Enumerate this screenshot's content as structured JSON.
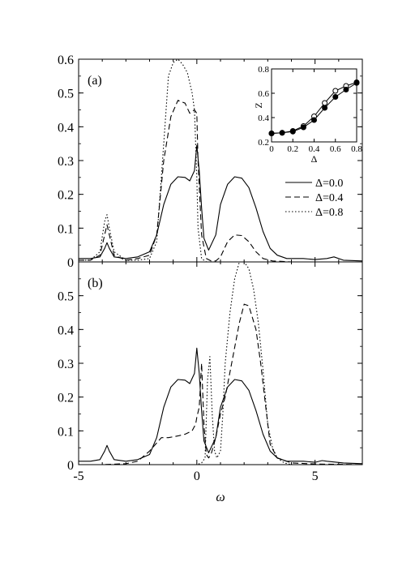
{
  "figure": {
    "xlabel": "ω",
    "xlim": [
      -5,
      7
    ],
    "xticks": [
      -5,
      0,
      5
    ],
    "legend": {
      "placement": "right",
      "entries": [
        {
          "label": "Δ=0.0",
          "dash": "solid"
        },
        {
          "label": "Δ=0.4",
          "dash": "dashed"
        },
        {
          "label": "Δ=0.8",
          "dash": "dotted"
        }
      ]
    }
  },
  "chart_data": [
    {
      "type": "line",
      "panel_label": "(a)",
      "title": "",
      "xlabel": "ω",
      "ylabel": "",
      "xlim": [
        -5,
        7
      ],
      "ylim": [
        0,
        0.6
      ],
      "yticks": [
        0,
        0.1,
        0.2,
        0.3,
        0.4,
        0.5,
        0.6
      ],
      "ytick_labels": [
        "0",
        "0.1",
        "0.2",
        "0.3",
        "0.4",
        "0.5",
        "0.6"
      ],
      "series": [
        {
          "name": "Δ=0.0",
          "dash": "solid",
          "x": [
            -5.2,
            -4.5,
            -4.1,
            -3.9,
            -3.8,
            -3.7,
            -3.5,
            -3.0,
            -2.5,
            -2.0,
            -1.7,
            -1.4,
            -1.1,
            -0.8,
            -0.5,
            -0.3,
            -0.1,
            0.0,
            0.1,
            0.2,
            0.3,
            0.5,
            0.8,
            1.0,
            1.3,
            1.6,
            1.9,
            2.2,
            2.5,
            2.8,
            3.1,
            3.4,
            3.8,
            4.5,
            5.0,
            5.5,
            5.8,
            6.2,
            7.0
          ],
          "y": [
            0.01,
            0.01,
            0.015,
            0.04,
            0.057,
            0.04,
            0.015,
            0.01,
            0.015,
            0.03,
            0.08,
            0.17,
            0.23,
            0.252,
            0.25,
            0.24,
            0.27,
            0.345,
            0.27,
            0.16,
            0.07,
            0.035,
            0.08,
            0.17,
            0.23,
            0.252,
            0.248,
            0.22,
            0.16,
            0.09,
            0.04,
            0.02,
            0.01,
            0.01,
            0.007,
            0.01,
            0.015,
            0.005,
            0.003
          ]
        },
        {
          "name": "Δ=0.4",
          "dash": "dashed",
          "x": [
            -5.2,
            -4.5,
            -4.1,
            -3.9,
            -3.8,
            -3.7,
            -3.5,
            -3.0,
            -2.5,
            -2.0,
            -1.7,
            -1.4,
            -1.1,
            -0.8,
            -0.5,
            -0.3,
            -0.1,
            0.0,
            0.05,
            0.2,
            0.4,
            0.6,
            0.8,
            1.0,
            1.3,
            1.6,
            1.9,
            2.2,
            2.5,
            2.8,
            3.2,
            4.0,
            7.0
          ],
          "y": [
            0.005,
            0.005,
            0.02,
            0.08,
            0.11,
            0.08,
            0.02,
            0.005,
            0.01,
            0.02,
            0.08,
            0.3,
            0.43,
            0.478,
            0.47,
            0.44,
            0.45,
            0.44,
            0.3,
            0.08,
            0.01,
            0.003,
            0.003,
            0.015,
            0.06,
            0.08,
            0.078,
            0.06,
            0.03,
            0.01,
            0.003,
            0.0,
            0.0
          ]
        },
        {
          "name": "Δ=0.8",
          "dash": "dotted",
          "x": [
            -5.2,
            -4.5,
            -4.1,
            -3.9,
            -3.8,
            -3.7,
            -3.5,
            -3.0,
            -2.5,
            -2.0,
            -1.7,
            -1.4,
            -1.2,
            -1.0,
            -0.8,
            -0.6,
            -0.4,
            -0.2,
            -0.1,
            0.0,
            0.05,
            0.2,
            0.4,
            7.0
          ],
          "y": [
            0.005,
            0.005,
            0.03,
            0.12,
            0.14,
            0.1,
            0.03,
            0.005,
            0.005,
            0.01,
            0.06,
            0.35,
            0.55,
            0.59,
            0.6,
            0.585,
            0.56,
            0.5,
            0.45,
            0.25,
            0.1,
            0.01,
            0.0,
            0.0
          ]
        }
      ]
    },
    {
      "type": "line",
      "panel_label": "(b)",
      "title": "",
      "xlabel": "ω",
      "ylabel": "",
      "xlim": [
        -5,
        7
      ],
      "ylim": [
        0,
        0.6
      ],
      "yticks": [
        0,
        0.1,
        0.2,
        0.3,
        0.4,
        0.5
      ],
      "ytick_labels": [
        "0",
        "0.1",
        "0.2",
        "0.3",
        "0.4",
        "0.5"
      ],
      "series": [
        {
          "name": "Δ=0.0",
          "dash": "solid",
          "x": [
            -5.2,
            -4.5,
            -4.1,
            -3.9,
            -3.8,
            -3.7,
            -3.5,
            -3.0,
            -2.5,
            -2.0,
            -1.7,
            -1.4,
            -1.1,
            -0.8,
            -0.5,
            -0.3,
            -0.1,
            0.0,
            0.1,
            0.2,
            0.3,
            0.5,
            0.8,
            1.0,
            1.3,
            1.6,
            1.9,
            2.2,
            2.5,
            2.8,
            3.1,
            3.4,
            3.8,
            4.5,
            5.0,
            5.3,
            5.5,
            6.2,
            7.0
          ],
          "y": [
            0.01,
            0.01,
            0.015,
            0.04,
            0.057,
            0.04,
            0.015,
            0.01,
            0.015,
            0.03,
            0.08,
            0.17,
            0.23,
            0.252,
            0.25,
            0.24,
            0.27,
            0.345,
            0.27,
            0.16,
            0.07,
            0.035,
            0.08,
            0.17,
            0.23,
            0.252,
            0.248,
            0.22,
            0.16,
            0.09,
            0.04,
            0.02,
            0.01,
            0.01,
            0.007,
            0.012,
            0.01,
            0.005,
            0.003
          ]
        },
        {
          "name": "Δ=0.4",
          "dash": "dashed",
          "x": [
            -5.2,
            -4.0,
            -3.0,
            -2.5,
            -2.0,
            -1.5,
            -1.2,
            -0.8,
            -0.5,
            -0.2,
            -0.05,
            0.0,
            0.1,
            0.2,
            0.3,
            0.4,
            0.5,
            0.6,
            0.8,
            1.0,
            1.2,
            1.5,
            1.8,
            2.0,
            2.2,
            2.5,
            2.7,
            2.9,
            3.1,
            3.4,
            4.0,
            5.0,
            7.0
          ],
          "y": [
            0.0,
            0.0,
            0.003,
            0.01,
            0.04,
            0.08,
            0.08,
            0.085,
            0.09,
            0.1,
            0.12,
            0.14,
            0.17,
            0.3,
            0.12,
            0.03,
            0.02,
            0.03,
            0.08,
            0.15,
            0.2,
            0.31,
            0.42,
            0.475,
            0.47,
            0.4,
            0.3,
            0.18,
            0.06,
            0.02,
            0.005,
            0.002,
            0.0
          ]
        },
        {
          "name": "Δ=0.8",
          "dash": "dotted",
          "x": [
            -5.2,
            -1.0,
            0.0,
            0.2,
            0.35,
            0.45,
            0.55,
            0.65,
            0.75,
            0.85,
            1.0,
            1.1,
            1.2,
            1.4,
            1.6,
            1.8,
            2.0,
            2.2,
            2.4,
            2.6,
            2.8,
            3.0,
            3.2,
            3.4,
            3.7,
            4.0,
            7.0
          ],
          "y": [
            0.0,
            0.0,
            0.0,
            0.005,
            0.02,
            0.25,
            0.32,
            0.15,
            0.04,
            0.02,
            0.04,
            0.15,
            0.3,
            0.45,
            0.55,
            0.6,
            0.6,
            0.58,
            0.52,
            0.42,
            0.28,
            0.12,
            0.05,
            0.02,
            0.005,
            0.0,
            0.0
          ]
        }
      ]
    },
    {
      "type": "line",
      "panel_label": "",
      "title": "",
      "xlabel": "Δ",
      "ylabel": "Z",
      "xlim": [
        0,
        0.8
      ],
      "ylim": [
        0.2,
        0.8
      ],
      "xticks": [
        0,
        0.2,
        0.4,
        0.6,
        0.8
      ],
      "xtick_labels": [
        "0",
        "0.2",
        "0.4",
        "0.6",
        "0.8"
      ],
      "yticks": [
        0.2,
        0.4,
        0.6,
        0.8
      ],
      "ytick_labels": [
        "0.2",
        "0.4",
        "0.6",
        "0.8"
      ],
      "series": [
        {
          "marker": "open-circle",
          "x": [
            0.0,
            0.1,
            0.2,
            0.3,
            0.4,
            0.5,
            0.6,
            0.7,
            0.8
          ],
          "y": [
            0.27,
            0.275,
            0.29,
            0.33,
            0.41,
            0.52,
            0.62,
            0.66,
            0.69
          ]
        },
        {
          "marker": "filled-circle",
          "x": [
            0.0,
            0.1,
            0.2,
            0.3,
            0.4,
            0.5,
            0.6,
            0.7,
            0.8
          ],
          "y": [
            0.27,
            0.275,
            0.285,
            0.32,
            0.38,
            0.48,
            0.57,
            0.63,
            0.685
          ]
        }
      ]
    }
  ]
}
